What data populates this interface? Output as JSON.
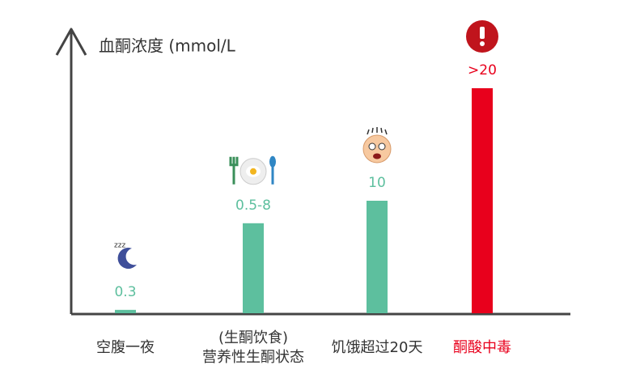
{
  "chart_data": {
    "type": "bar",
    "title": "血酮浓度 (mmol/L",
    "categories": [
      [
        "空腹一夜"
      ],
      [
        "(生酮饮食)",
        "营养性生酮状态"
      ],
      [
        "饥饿超过20天"
      ],
      [
        "酮酸中毒"
      ]
    ],
    "values": [
      0.3,
      8,
      10,
      20
    ],
    "value_labels": [
      "0.3",
      "0.5-8",
      "10",
      ">20"
    ],
    "colors": [
      "#5dbf9e",
      "#5dbf9e",
      "#5dbf9e",
      "#e8001c"
    ],
    "ylim": [
      0,
      20
    ]
  }
}
